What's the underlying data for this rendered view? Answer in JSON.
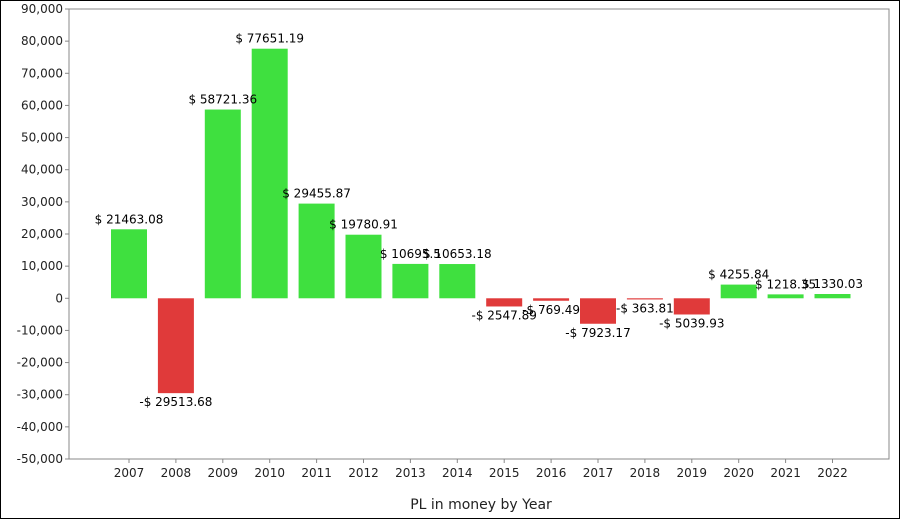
{
  "chart_data": {
    "type": "bar",
    "categories": [
      "2007",
      "2008",
      "2009",
      "2010",
      "2011",
      "2012",
      "2013",
      "2014",
      "2015",
      "2016",
      "2017",
      "2018",
      "2019",
      "2020",
      "2021",
      "2022"
    ],
    "values": [
      21463.08,
      -29513.68,
      58721.36,
      77651.19,
      29455.87,
      19780.91,
      10695.5,
      10653.18,
      -2547.89,
      -769.49,
      -7923.17,
      -363.81,
      -5039.93,
      4255.84,
      1218.35,
      1330.03
    ],
    "data_labels": [
      "$ 21463.08",
      "-$ 29513.68",
      "$ 58721.36",
      "$ 77651.19",
      "$ 29455.87",
      "$ 19780.91",
      "$ 10695.5",
      "$ 10653.18",
      "-$ 2547.89",
      "-$ 769.49",
      "-$ 7923.17",
      "-$ 363.81",
      "-$ 5039.93",
      "$ 4255.84",
      "$ 1218.35",
      "$ 1330.03"
    ],
    "title": "",
    "xlabel": "PL in money by Year",
    "ylabel": "",
    "ylim": [
      -50000,
      90000
    ],
    "yticks": [
      90000,
      80000,
      70000,
      60000,
      50000,
      40000,
      30000,
      20000,
      10000,
      0,
      -10000,
      -20000,
      -30000,
      -40000,
      -50000
    ],
    "ytick_labels": [
      "90,000",
      "80,000",
      "70,000",
      "60,000",
      "50,000",
      "40,000",
      "30,000",
      "20,000",
      "10,000",
      "0",
      "-10,000",
      "-20,000",
      "-30,000",
      "-40,000",
      "-50,000"
    ],
    "grid": true,
    "legend": "none",
    "colors": {
      "positive": "#3fe03f",
      "negative": "#e03a3a",
      "grid": "#d0d0d0",
      "axis": "#888888"
    }
  }
}
